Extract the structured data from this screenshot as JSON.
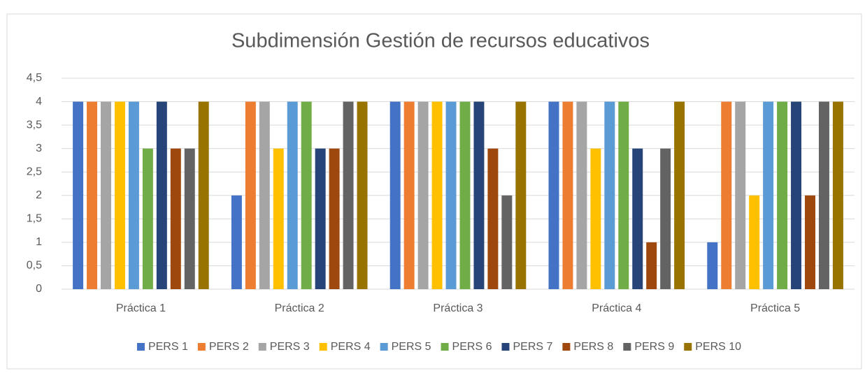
{
  "chart_data": {
    "type": "bar",
    "title": "Subdimensión Gestión de recursos educativos",
    "categories": [
      "Práctica 1",
      "Práctica 2",
      "Práctica 3",
      "Práctica 4",
      "Práctica 5"
    ],
    "series": [
      {
        "name": "PERS 1",
        "color": "#4472c4",
        "values": [
          4,
          2,
          4,
          4,
          1
        ]
      },
      {
        "name": "PERS 2",
        "color": "#ed7d31",
        "values": [
          4,
          4,
          4,
          4,
          4
        ]
      },
      {
        "name": "PERS 3",
        "color": "#a5a5a5",
        "values": [
          4,
          4,
          4,
          4,
          4
        ]
      },
      {
        "name": "PERS 4",
        "color": "#ffc000",
        "values": [
          4,
          3,
          4,
          3,
          2
        ]
      },
      {
        "name": "PERS 5",
        "color": "#5b9bd5",
        "values": [
          4,
          4,
          4,
          4,
          4
        ]
      },
      {
        "name": "PERS 6",
        "color": "#70ad47",
        "values": [
          3,
          4,
          4,
          4,
          4
        ]
      },
      {
        "name": "PERS 7",
        "color": "#264478",
        "values": [
          4,
          3,
          4,
          3,
          4
        ]
      },
      {
        "name": "PERS 8",
        "color": "#9e480e",
        "values": [
          3,
          3,
          3,
          1,
          2
        ]
      },
      {
        "name": "PERS 9",
        "color": "#636363",
        "values": [
          3,
          4,
          2,
          3,
          4
        ]
      },
      {
        "name": "PERS 10",
        "color": "#997300",
        "values": [
          4,
          4,
          4,
          4,
          4
        ]
      }
    ],
    "ylim": [
      0,
      4.5
    ],
    "yticks": [
      0,
      {
        "value": 0.5,
        "label": "0,5"
      },
      1,
      {
        "value": 1.5,
        "label": "1,5"
      },
      2,
      {
        "value": 2.5,
        "label": "2,5"
      },
      3,
      {
        "value": 3.5,
        "label": "3,5"
      },
      4,
      {
        "value": 4.5,
        "label": "4,5"
      }
    ],
    "grid": true,
    "legend": "bottom"
  }
}
